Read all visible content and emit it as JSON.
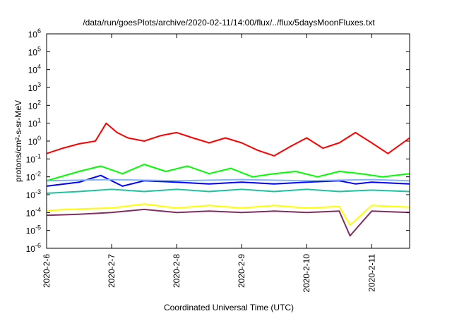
{
  "chart_data": {
    "type": "line",
    "title": "/data/run/goesPlots/archive/2020-02-11/14:00/flux/../flux/5daysMoonFluxes.txt",
    "xlabel": "Coordinated Universal Time (UTC)",
    "ylabel": "protons/cm²-s-sr-MeV",
    "y_scale": "log",
    "ylim": [
      1e-06,
      1000000.0
    ],
    "y_ticks": [
      {
        "base": "10",
        "exp": "-6"
      },
      {
        "base": "10",
        "exp": "-5"
      },
      {
        "base": "10",
        "exp": "-4"
      },
      {
        "base": "10",
        "exp": "-3"
      },
      {
        "base": "10",
        "exp": "-2"
      },
      {
        "base": "10",
        "exp": "-1"
      },
      {
        "base": "10",
        "exp": "0"
      },
      {
        "base": "10",
        "exp": "1"
      },
      {
        "base": "10",
        "exp": "2"
      },
      {
        "base": "10",
        "exp": "3"
      },
      {
        "base": "10",
        "exp": "4"
      },
      {
        "base": "10",
        "exp": "5"
      },
      {
        "base": "10",
        "exp": "6"
      }
    ],
    "x_ticks": [
      "2020-2-6",
      "2020-2-7",
      "2020-2-8",
      "2020-2-9",
      "2020-2-10",
      "2020-2-11"
    ],
    "xlim": [
      "2020-02-06T00:00",
      "2020-02-11T14:00"
    ],
    "grid": false,
    "series": [
      {
        "color": "#ff0000",
        "x": [
          "2020-02-06T00:00",
          "2020-02-06T06:00",
          "2020-02-06T12:00",
          "2020-02-06T18:00",
          "2020-02-06T22:00",
          "2020-02-07T02:00",
          "2020-02-07T06:00",
          "2020-02-07T12:00",
          "2020-02-07T18:00",
          "2020-02-08T00:00",
          "2020-02-08T06:00",
          "2020-02-08T12:00",
          "2020-02-08T18:00",
          "2020-02-09T00:00",
          "2020-02-09T06:00",
          "2020-02-09T12:00",
          "2020-02-09T18:00",
          "2020-02-10T00:00",
          "2020-02-10T06:00",
          "2020-02-10T12:00",
          "2020-02-10T18:00",
          "2020-02-11T00:00",
          "2020-02-11T06:00",
          "2020-02-11T14:00"
        ],
        "y": [
          0.2,
          0.4,
          0.7,
          1,
          10,
          3,
          1.5,
          1,
          2,
          3,
          1.5,
          0.8,
          1.5,
          0.8,
          0.3,
          0.15,
          0.5,
          1.5,
          0.4,
          0.8,
          3,
          0.8,
          0.2,
          1.5
        ]
      },
      {
        "color": "#00ff00",
        "x": [
          "2020-02-06T00:00",
          "2020-02-06T12:00",
          "2020-02-06T20:00",
          "2020-02-07T04:00",
          "2020-02-07T12:00",
          "2020-02-07T20:00",
          "2020-02-08T04:00",
          "2020-02-08T12:00",
          "2020-02-08T20:00",
          "2020-02-09T04:00",
          "2020-02-09T12:00",
          "2020-02-09T20:00",
          "2020-02-10T04:00",
          "2020-02-10T12:00",
          "2020-02-10T20:00",
          "2020-02-11T04:00",
          "2020-02-11T14:00"
        ],
        "y": [
          0.006,
          0.02,
          0.04,
          0.015,
          0.05,
          0.02,
          0.04,
          0.015,
          0.03,
          0.01,
          0.015,
          0.02,
          0.01,
          0.02,
          0.015,
          0.01,
          0.015
        ]
      },
      {
        "color": "#0000ff",
        "x": [
          "2020-02-06T00:00",
          "2020-02-06T12:00",
          "2020-02-06T20:00",
          "2020-02-07T04:00",
          "2020-02-07T12:00",
          "2020-02-08T00:00",
          "2020-02-08T12:00",
          "2020-02-09T00:00",
          "2020-02-09T12:00",
          "2020-02-10T00:00",
          "2020-02-10T12:00",
          "2020-02-10T18:00",
          "2020-02-11T00:00",
          "2020-02-11T14:00"
        ],
        "y": [
          0.003,
          0.005,
          0.012,
          0.003,
          0.006,
          0.005,
          0.004,
          0.005,
          0.004,
          0.005,
          0.006,
          0.004,
          0.005,
          0.004
        ]
      },
      {
        "color": "#7fb3ff",
        "x": [
          "2020-02-06T00:00",
          "2020-02-07T00:00",
          "2020-02-08T00:00",
          "2020-02-09T00:00",
          "2020-02-10T00:00",
          "2020-02-11T00:00",
          "2020-02-11T14:00"
        ],
        "y": [
          0.006,
          0.007,
          0.006,
          0.007,
          0.006,
          0.007,
          0.006
        ]
      },
      {
        "color": "#20c0a0",
        "x": [
          "2020-02-06T00:00",
          "2020-02-06T12:00",
          "2020-02-07T00:00",
          "2020-02-07T12:00",
          "2020-02-08T00:00",
          "2020-02-08T12:00",
          "2020-02-09T00:00",
          "2020-02-09T12:00",
          "2020-02-10T00:00",
          "2020-02-10T12:00",
          "2020-02-11T00:00",
          "2020-02-11T14:00"
        ],
        "y": [
          0.0012,
          0.0015,
          0.002,
          0.0015,
          0.002,
          0.0015,
          0.002,
          0.0015,
          0.002,
          0.0015,
          0.0018,
          0.0015
        ]
      },
      {
        "color": "#ffff00",
        "x": [
          "2020-02-06T00:00",
          "2020-02-06T12:00",
          "2020-02-07T00:00",
          "2020-02-07T12:00",
          "2020-02-08T00:00",
          "2020-02-08T12:00",
          "2020-02-09T00:00",
          "2020-02-09T12:00",
          "2020-02-10T00:00",
          "2020-02-10T12:00",
          "2020-02-10T16:00",
          "2020-02-11T00:00",
          "2020-02-11T14:00"
        ],
        "y": [
          0.00013,
          0.00016,
          0.00018,
          0.0003,
          0.00018,
          0.00025,
          0.00018,
          0.00025,
          0.00018,
          0.00022,
          2e-05,
          0.00025,
          0.0002
        ]
      },
      {
        "color": "#803060",
        "x": [
          "2020-02-06T00:00",
          "2020-02-06T12:00",
          "2020-02-07T00:00",
          "2020-02-07T12:00",
          "2020-02-08T00:00",
          "2020-02-08T12:00",
          "2020-02-09T00:00",
          "2020-02-09T12:00",
          "2020-02-10T00:00",
          "2020-02-10T12:00",
          "2020-02-10T16:00",
          "2020-02-11T00:00",
          "2020-02-11T14:00"
        ],
        "y": [
          7e-05,
          8e-05,
          0.0001,
          0.00015,
          0.0001,
          0.00012,
          0.0001,
          0.00012,
          0.0001,
          0.00012,
          5e-06,
          0.00012,
          0.0001
        ]
      }
    ]
  }
}
